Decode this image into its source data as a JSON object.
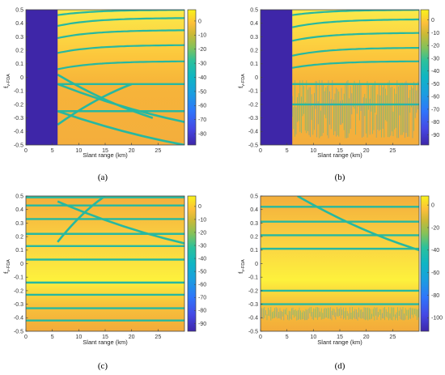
{
  "figure": {
    "panel_captions": [
      "(a)",
      "(b)",
      "(c)",
      "(d)"
    ]
  },
  "chart_data": [
    {
      "type": "heatmap",
      "panel": "(a)",
      "xlabel": "Slant range (km)",
      "ylabel": "f_{v-FDA}",
      "xlim": [
        0,
        30
      ],
      "ylim": [
        -0.5,
        0.5
      ],
      "xticks": [
        0,
        5,
        10,
        15,
        20,
        25
      ],
      "yticks": [
        0.5,
        0.4,
        0.3,
        0.2,
        0.1,
        0,
        -0.1,
        -0.2,
        -0.3,
        -0.4,
        -0.5
      ],
      "colorbar_ticks": [
        0,
        -10,
        -20,
        -30,
        -40,
        -50,
        -60,
        -70,
        -80
      ],
      "colorbar_range": [
        -88,
        8
      ],
      "colormap": "parula",
      "blind_zone_km": [
        0,
        6
      ],
      "ridge_features": [
        {
          "kind": "curve",
          "at_x": 6,
          "y": 0.46,
          "asymptote": 0.5
        },
        {
          "kind": "curve",
          "at_x": 6,
          "y": 0.38,
          "asymptote": 0.44
        },
        {
          "kind": "curve",
          "at_x": 6,
          "y": 0.29,
          "asymptote": 0.35
        },
        {
          "kind": "curve",
          "at_x": 6,
          "y": 0.18,
          "asymptote": 0.24
        },
        {
          "kind": "curve",
          "at_x": 6,
          "y": 0.06,
          "asymptote": 0.12
        },
        {
          "kind": "horizontal",
          "y": -0.05
        },
        {
          "kind": "horizontal",
          "y": -0.25
        },
        {
          "kind": "crossing",
          "from": [
            6,
            -0.05
          ],
          "to": [
            30,
            -0.33
          ]
        },
        {
          "kind": "crossing",
          "from": [
            6,
            -0.25
          ],
          "to": [
            30,
            -0.5
          ]
        },
        {
          "kind": "crossing",
          "from": [
            6,
            0.02
          ],
          "to": [
            24,
            -0.3
          ]
        },
        {
          "kind": "crossing",
          "from": [
            6,
            -0.35
          ],
          "to": [
            20,
            -0.05
          ]
        }
      ]
    },
    {
      "type": "heatmap",
      "panel": "(b)",
      "xlabel": "Slant range (km)",
      "ylabel": "f_{v-FDA}",
      "xlim": [
        0,
        30
      ],
      "ylim": [
        -0.5,
        0.5
      ],
      "xticks": [
        0,
        5,
        10,
        15,
        20,
        25
      ],
      "yticks": [
        0.5,
        0.4,
        0.3,
        0.2,
        0.1,
        0,
        -0.1,
        -0.2,
        -0.3,
        -0.4,
        -0.5
      ],
      "colorbar_ticks": [
        0,
        -10,
        -20,
        -30,
        -40,
        -50,
        -60,
        -70,
        -80,
        -90
      ],
      "colorbar_range": [
        -98,
        8
      ],
      "colormap": "parula",
      "blind_zone_km": [
        0,
        6
      ],
      "ridge_features": [
        {
          "kind": "curve",
          "at_x": 6,
          "y": 0.46,
          "asymptote": 0.5
        },
        {
          "kind": "curve",
          "at_x": 6,
          "y": 0.37,
          "asymptote": 0.43
        },
        {
          "kind": "curve",
          "at_x": 6,
          "y": 0.27,
          "asymptote": 0.33
        },
        {
          "kind": "curve",
          "at_x": 6,
          "y": 0.16,
          "asymptote": 0.22
        },
        {
          "kind": "curve",
          "at_x": 6,
          "y": 0.07,
          "asymptote": 0.12
        },
        {
          "kind": "horizontal",
          "y": -0.05
        },
        {
          "kind": "horizontal",
          "y": -0.2
        },
        {
          "kind": "noise_band",
          "y": [
            -0.45,
            -0.02
          ]
        }
      ]
    },
    {
      "type": "heatmap",
      "panel": "(c)",
      "xlabel": "Slant range (km)",
      "ylabel": "f_{v-FDA}",
      "xlim": [
        0,
        30
      ],
      "ylim": [
        -0.5,
        0.5
      ],
      "xticks": [
        0,
        5,
        10,
        15,
        20,
        25
      ],
      "yticks": [
        0.5,
        0.4,
        0.3,
        0.2,
        0.1,
        0,
        -0.1,
        -0.2,
        -0.3,
        -0.4,
        -0.5
      ],
      "colorbar_ticks": [
        0,
        -10,
        -20,
        -30,
        -40,
        -50,
        -60,
        -70,
        -80,
        -90
      ],
      "colorbar_range": [
        -96,
        8
      ],
      "colormap": "parula",
      "blind_zone_km": null,
      "ridge_features": [
        {
          "kind": "horizontal",
          "y": 0.49
        },
        {
          "kind": "horizontal",
          "y": 0.43
        },
        {
          "kind": "horizontal",
          "y": 0.33
        },
        {
          "kind": "horizontal",
          "y": 0.22
        },
        {
          "kind": "horizontal",
          "y": 0.13
        },
        {
          "kind": "horizontal",
          "y": 0.03
        },
        {
          "kind": "horizontal",
          "y": -0.14
        },
        {
          "kind": "horizontal",
          "y": -0.23
        },
        {
          "kind": "horizontal",
          "y": -0.33
        },
        {
          "kind": "horizontal",
          "y": -0.42
        },
        {
          "kind": "crossing",
          "from": [
            6,
            0.46
          ],
          "to": [
            30,
            0.15
          ]
        },
        {
          "kind": "crossing",
          "from": [
            6,
            0.16
          ],
          "to": [
            15,
            0.5
          ]
        }
      ]
    },
    {
      "type": "heatmap",
      "panel": "(d)",
      "xlabel": "Slant range (km)",
      "ylabel": "f_{v-FDA}",
      "xlim": [
        0,
        30
      ],
      "ylim": [
        -0.5,
        0.5
      ],
      "xticks": [
        0,
        5,
        10,
        15,
        20,
        25
      ],
      "yticks": [
        0.5,
        0.4,
        0.3,
        0.2,
        0.1,
        0,
        -0.1,
        -0.2,
        -0.3,
        -0.4,
        -0.5
      ],
      "colorbar_ticks": [
        0,
        -20,
        -40,
        -60,
        -80,
        -100
      ],
      "colorbar_range": [
        -112,
        8
      ],
      "colormap": "parula",
      "blind_zone_km": null,
      "ridge_features": [
        {
          "kind": "horizontal",
          "y": 0.42
        },
        {
          "kind": "horizontal",
          "y": 0.31
        },
        {
          "kind": "horizontal",
          "y": 0.21
        },
        {
          "kind": "horizontal",
          "y": 0.11
        },
        {
          "kind": "horizontal",
          "y": -0.2
        },
        {
          "kind": "horizontal",
          "y": -0.3
        },
        {
          "kind": "noise_band",
          "y": [
            -0.42,
            -0.32
          ]
        },
        {
          "kind": "crossing",
          "from": [
            7,
            0.5
          ],
          "to": [
            30,
            0.1
          ]
        }
      ]
    }
  ]
}
